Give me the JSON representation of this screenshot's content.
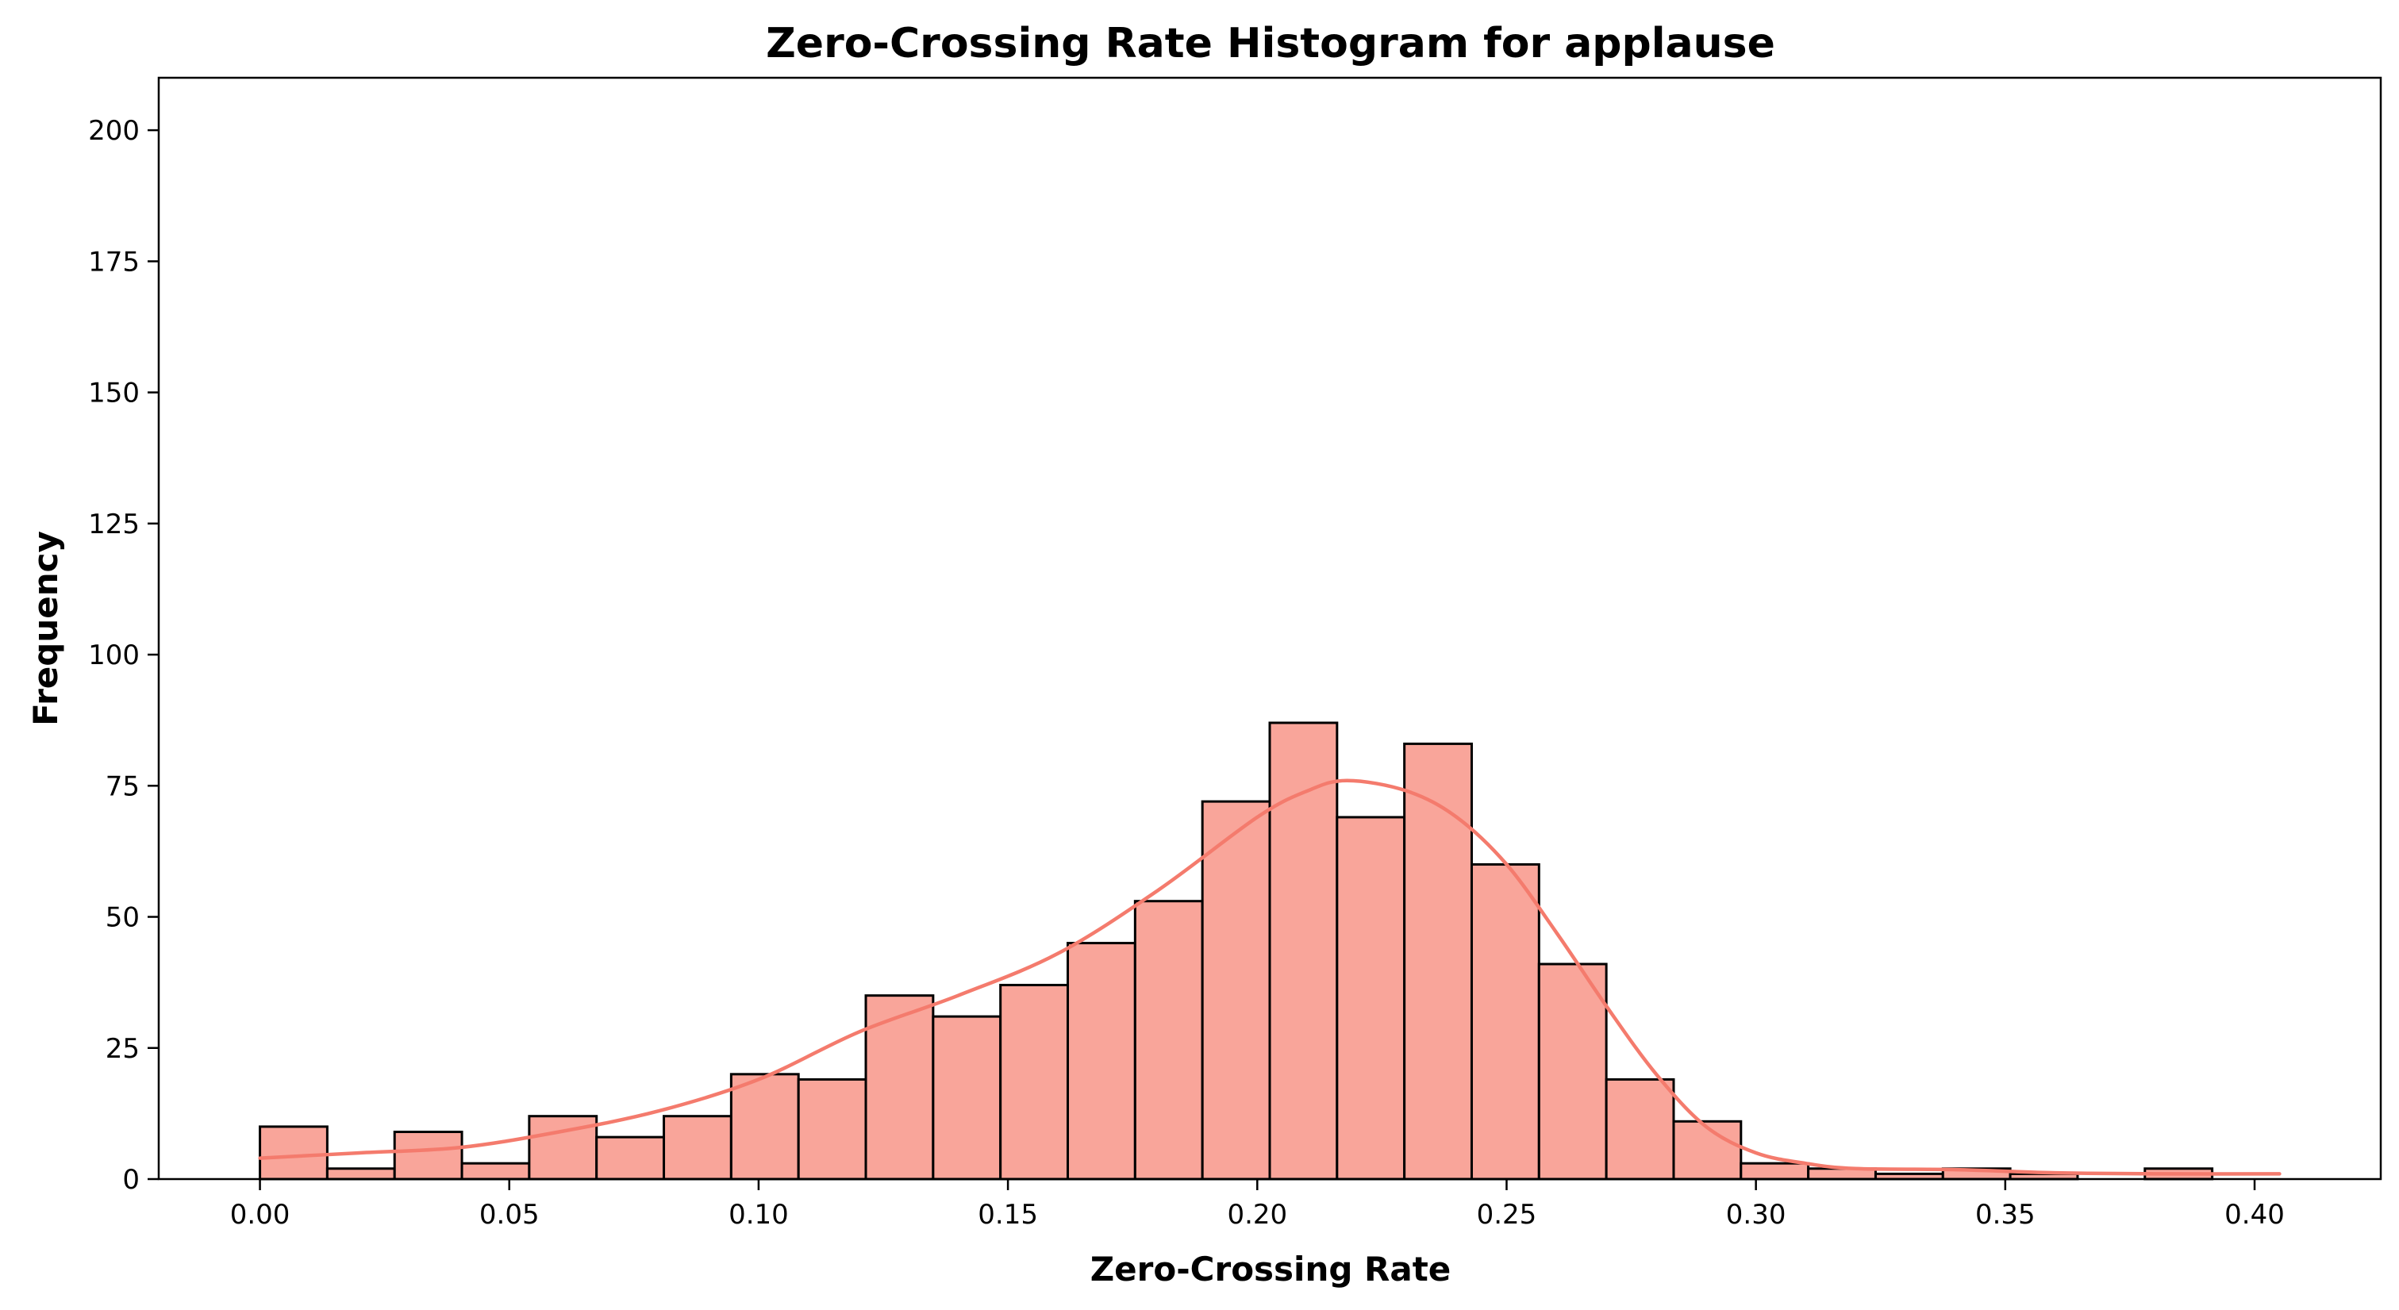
{
  "chart_data": {
    "type": "histogram",
    "title": "Zero-Crossing Rate Histogram for applause",
    "xlabel": "Zero-Crossing Rate",
    "ylabel": "Frequency",
    "xlim": [
      -0.0203,
      0.4253
    ],
    "ylim": [
      0,
      210
    ],
    "xticks": [
      0.0,
      0.05,
      0.1,
      0.15,
      0.2,
      0.25,
      0.3,
      0.35,
      0.4
    ],
    "xtick_labels": [
      "0.00",
      "0.05",
      "0.10",
      "0.15",
      "0.20",
      "0.25",
      "0.30",
      "0.35",
      "0.40"
    ],
    "yticks": [
      0,
      25,
      50,
      75,
      100,
      125,
      150,
      175,
      200
    ],
    "ytick_labels": [
      "0",
      "25",
      "50",
      "75",
      "100",
      "125",
      "150",
      "175",
      "200"
    ],
    "bin_start": 0.0,
    "bin_width": 0.0135,
    "bin_counts": [
      10,
      2,
      9,
      3,
      12,
      8,
      12,
      20,
      19,
      35,
      31,
      37,
      45,
      53,
      72,
      87,
      69,
      83,
      60,
      41,
      19,
      11,
      3,
      2,
      1,
      2,
      1,
      0,
      2,
      0
    ],
    "kde": {
      "x": [
        0.0,
        0.02,
        0.04,
        0.06,
        0.08,
        0.1,
        0.12,
        0.14,
        0.16,
        0.18,
        0.2,
        0.21,
        0.218,
        0.23,
        0.24,
        0.25,
        0.26,
        0.27,
        0.28,
        0.29,
        0.3,
        0.31,
        0.32,
        0.34,
        0.36,
        0.38,
        0.405
      ],
      "y": [
        4,
        5,
        6,
        9,
        13,
        19,
        28,
        35,
        43,
        55,
        69,
        74,
        76,
        74,
        69,
        60,
        47,
        33,
        20,
        10,
        5,
        3,
        2,
        1.8,
        1.2,
        1,
        1
      ]
    },
    "colors": {
      "bar_fill": "#f9a59a",
      "kde_line": "#f47b6d",
      "edge": "#000000"
    }
  }
}
